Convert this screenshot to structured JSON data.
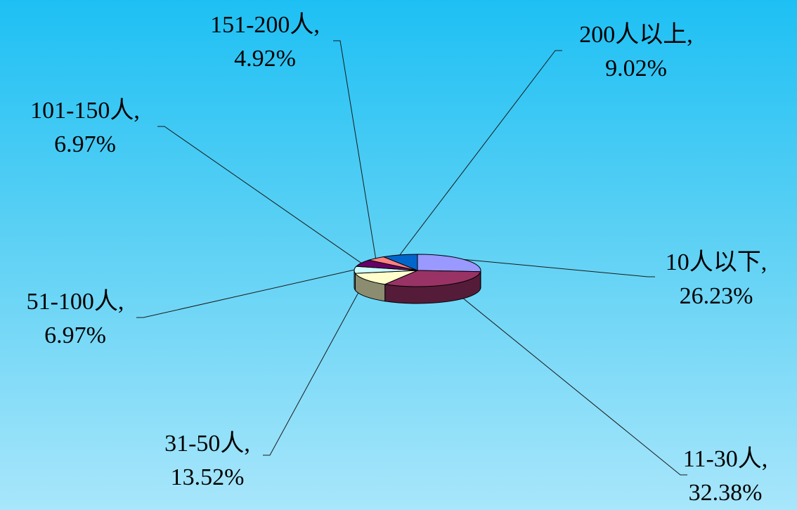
{
  "chart_data": {
    "type": "pie",
    "title": "",
    "slices": [
      {
        "label": "10人以下",
        "label_line": "10人以下,",
        "percent": 26.23,
        "percent_text": "26.23%",
        "color": "#9999ff"
      },
      {
        "label": "11-30人",
        "label_line": "11-30人,",
        "percent": 32.38,
        "percent_text": "32.38%",
        "color": "#993366"
      },
      {
        "label": "31-50人",
        "label_line": "31-50人,",
        "percent": 13.52,
        "percent_text": "13.52%",
        "color": "#ffffcc"
      },
      {
        "label": "51-100人",
        "label_line": "51-100人,",
        "percent": 6.97,
        "percent_text": "6.97%",
        "color": "#ccffff"
      },
      {
        "label": "101-150人",
        "label_line": "101-150人,",
        "percent": 6.97,
        "percent_text": "6.97%",
        "color": "#660066"
      },
      {
        "label": "151-200人",
        "label_line": "151-200人,",
        "percent": 4.92,
        "percent_text": "4.92%",
        "color": "#ff8080"
      },
      {
        "label": "200人以上",
        "label_line": "200人以上,",
        "percent": 9.02,
        "percent_text": "9.02%",
        "color": "#0066cc"
      }
    ],
    "legend": "none",
    "style": "3d-pie"
  }
}
